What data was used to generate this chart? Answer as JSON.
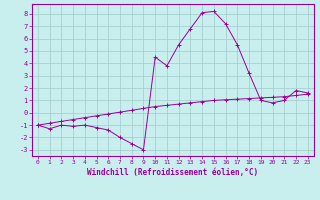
{
  "x": [
    0,
    1,
    2,
    3,
    4,
    5,
    6,
    7,
    8,
    9,
    10,
    11,
    12,
    13,
    14,
    15,
    16,
    17,
    18,
    19,
    20,
    21,
    22,
    23
  ],
  "y_main": [
    -1.0,
    -1.3,
    -1.0,
    -1.1,
    -1.0,
    -1.2,
    -1.4,
    -2.0,
    -2.5,
    -3.0,
    4.5,
    3.8,
    5.5,
    6.8,
    8.1,
    8.2,
    7.2,
    5.5,
    3.2,
    1.0,
    0.8,
    1.0,
    1.8,
    1.6
  ],
  "y_line": [
    -1.0,
    -0.85,
    -0.7,
    -0.55,
    -0.4,
    -0.25,
    -0.1,
    0.05,
    0.2,
    0.35,
    0.5,
    0.6,
    0.7,
    0.8,
    0.9,
    1.0,
    1.05,
    1.1,
    1.15,
    1.2,
    1.25,
    1.3,
    1.4,
    1.5
  ],
  "background_color": "#c8eeed",
  "grid_color": "#a0cccc",
  "line_color": "#990099",
  "ylim": [
    -3.5,
    8.8
  ],
  "xlim": [
    -0.5,
    23.5
  ],
  "xlabel": "Windchill (Refroidissement éolien,°C)",
  "yticks": [
    -3,
    -2,
    -1,
    0,
    1,
    2,
    3,
    4,
    5,
    6,
    7,
    8
  ],
  "xticks": [
    0,
    1,
    2,
    3,
    4,
    5,
    6,
    7,
    8,
    9,
    10,
    11,
    12,
    13,
    14,
    15,
    16,
    17,
    18,
    19,
    20,
    21,
    22,
    23
  ]
}
